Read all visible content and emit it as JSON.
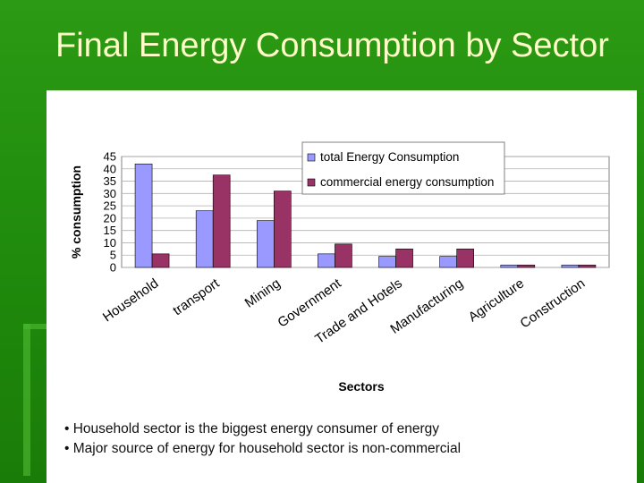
{
  "slide": {
    "title": "Final Energy Consumption by Sector",
    "notes": [
      "• Household sector is the biggest energy consumer of energy",
      "• Major source of energy for household sector is non-commercial"
    ]
  },
  "chart_data": {
    "type": "bar",
    "title": "",
    "xlabel": "Sectors",
    "ylabel": "% consumption",
    "ylim": [
      0,
      45
    ],
    "yticks": [
      "0",
      "5",
      "10",
      "15",
      "20",
      "25",
      "30",
      "35",
      "40",
      "45"
    ],
    "categories": [
      "Household",
      "transport",
      "Mining",
      "Government",
      "Trade and Hotels",
      "Manufacturing",
      "Agriculture",
      "Construction"
    ],
    "series": [
      {
        "name": "total Energy Consumption",
        "color": "#9999ff",
        "values": [
          42,
          23,
          19,
          5.5,
          4.5,
          4.5,
          1,
          1
        ]
      },
      {
        "name": "commercial energy consumption",
        "color": "#993366",
        "values": [
          5.5,
          37.5,
          31,
          9.5,
          7.5,
          7.5,
          1,
          1
        ]
      }
    ],
    "legend_position": "top-right",
    "grid": true
  }
}
